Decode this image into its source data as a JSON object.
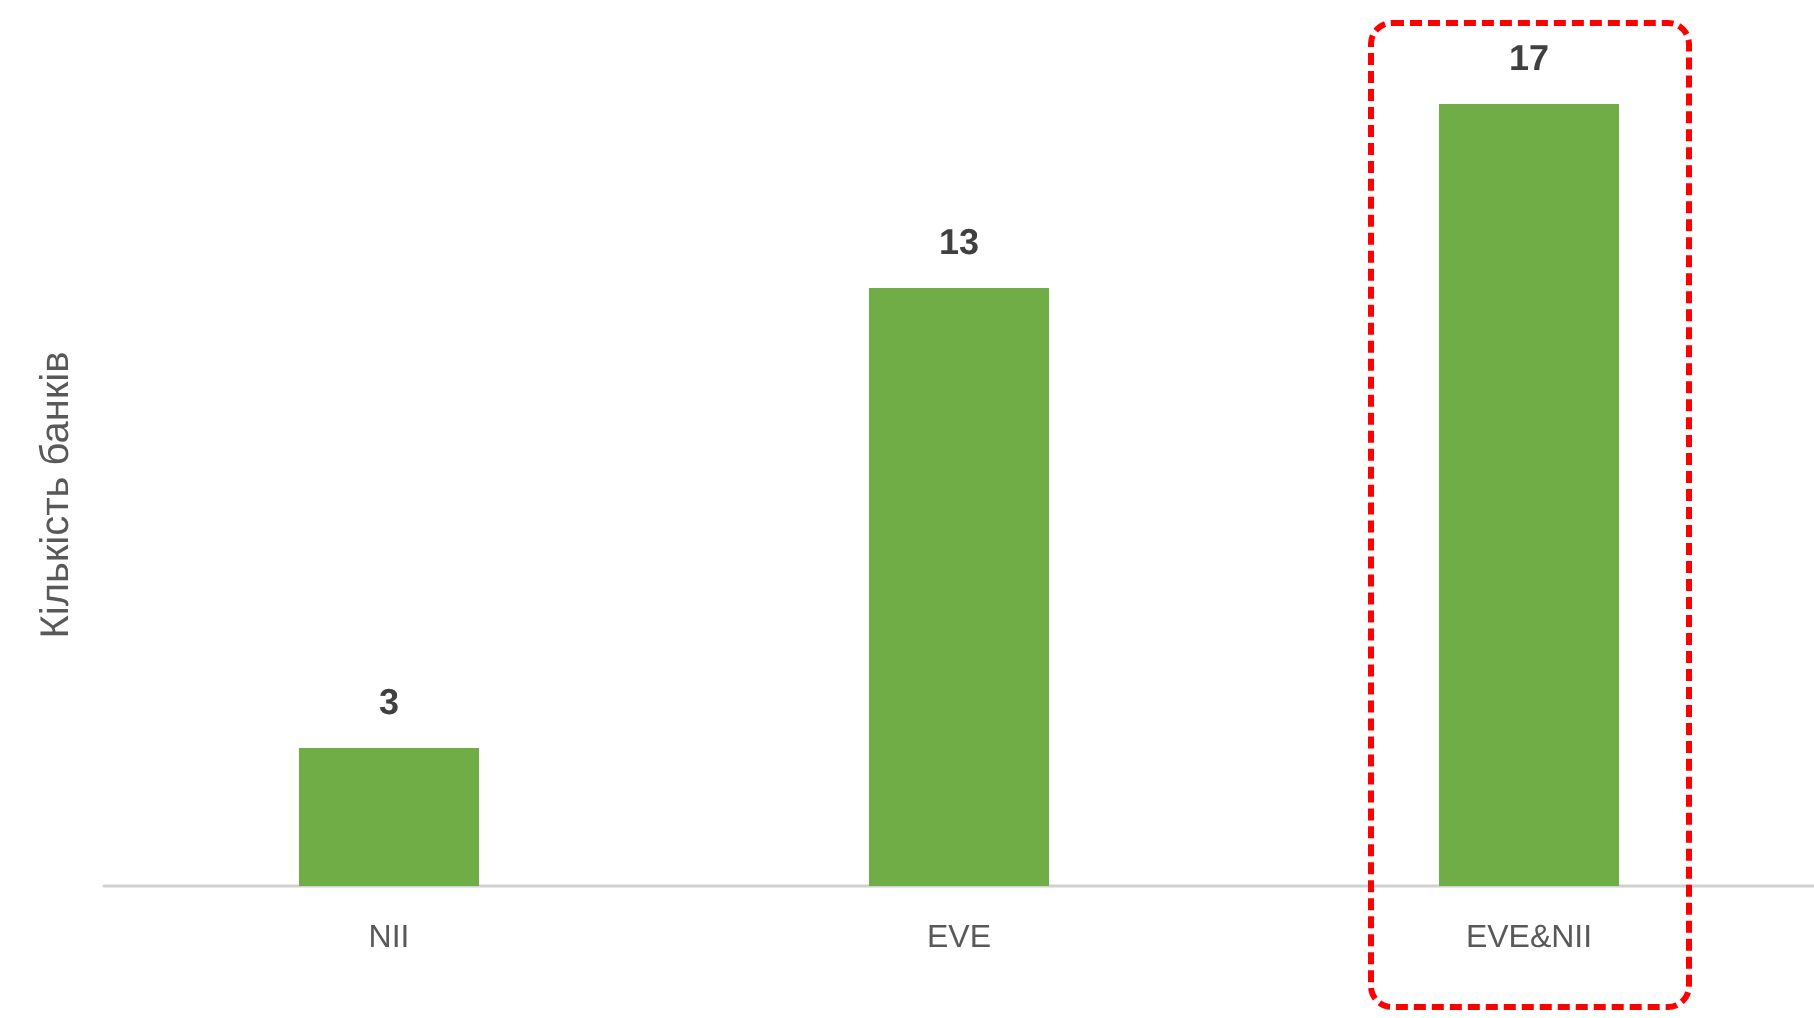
{
  "chart_data": {
    "type": "bar",
    "ylabel": "Кількість банків",
    "categories": [
      "NII",
      "EVE",
      "EVE&NII"
    ],
    "values": [
      3,
      13,
      17
    ],
    "color": "#70ad47",
    "data_labels": true,
    "grid": false
  }
}
